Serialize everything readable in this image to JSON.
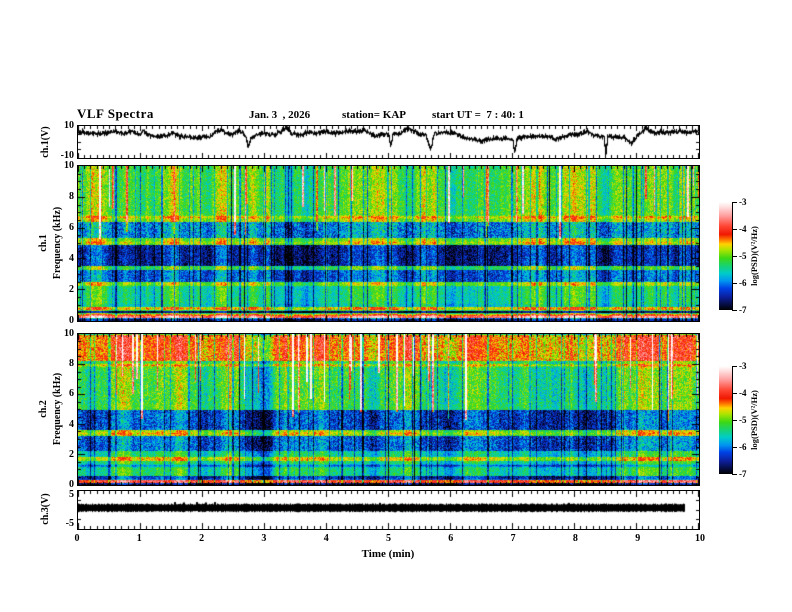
{
  "header": {
    "title": "VLF Spectra",
    "date": "Jan. 3  , 2026",
    "station": "station= KAP",
    "start_ut": "start UT =  7 : 40: 1"
  },
  "axes": {
    "time_label": "Time (min)",
    "time_ticks": [
      "0",
      "1",
      "2",
      "3",
      "4",
      "5",
      "6",
      "7",
      "8",
      "9",
      "10"
    ],
    "wave": {
      "label": "ch.1(V)",
      "ytop": "10",
      "ybottom": "-10"
    },
    "spec1": {
      "row_label": "ch.1",
      "ylabel": "Frequency (kHz)",
      "yticks": [
        "0",
        "2",
        "4",
        "6",
        "8",
        "10"
      ]
    },
    "spec2": {
      "row_label": "ch.2",
      "ylabel": "Frequency (kHz)",
      "yticks": [
        "0",
        "2",
        "4",
        "6",
        "8",
        "10"
      ]
    },
    "ch3": {
      "label": "ch.3(V)",
      "ytop": "5",
      "ybottom": "-5"
    },
    "colorbar": {
      "label": "log(PSD)(V²/Hz)",
      "ticks": [
        "-3",
        "-4",
        "-5",
        "-6",
        "-7"
      ]
    }
  },
  "palette": {
    "stops": [
      [
        0.0,
        "#ffffff"
      ],
      [
        0.05,
        "#ffdcdc"
      ],
      [
        0.13,
        "#ff9c9c"
      ],
      [
        0.22,
        "#ff4838"
      ],
      [
        0.3,
        "#f01800"
      ],
      [
        0.35,
        "#ff7800"
      ],
      [
        0.39,
        "#ffd200"
      ],
      [
        0.44,
        "#b4e400"
      ],
      [
        0.52,
        "#3cd814"
      ],
      [
        0.6,
        "#14d27c"
      ],
      [
        0.66,
        "#00ccc8"
      ],
      [
        0.73,
        "#0096f0"
      ],
      [
        0.8,
        "#0041e6"
      ],
      [
        0.88,
        "#0d1f9b"
      ],
      [
        1.0,
        "#000000"
      ]
    ]
  },
  "chart_data": [
    {
      "id": "ch1_waveform",
      "type": "line",
      "title": "ch.1(V)",
      "xlim_min": [
        0,
        10
      ],
      "ylim_volts": [
        -10,
        10
      ],
      "noise_amp": 0.8,
      "seed": 424242,
      "points": [
        [
          0,
          6.5
        ],
        [
          0.1,
          6
        ],
        [
          0.2,
          5.5
        ],
        [
          0.35,
          5
        ],
        [
          0.5,
          5.5
        ],
        [
          0.6,
          7
        ],
        [
          0.7,
          5
        ],
        [
          0.85,
          6.5
        ],
        [
          1,
          4.5
        ],
        [
          1.05,
          7
        ],
        [
          1.15,
          4
        ],
        [
          1.3,
          3.5
        ],
        [
          1.45,
          4
        ],
        [
          1.5,
          6
        ],
        [
          1.6,
          3.5
        ],
        [
          1.75,
          3
        ],
        [
          1.9,
          2.5
        ],
        [
          2,
          3
        ],
        [
          2.1,
          2.5
        ],
        [
          2.2,
          6
        ],
        [
          2.3,
          7.5
        ],
        [
          2.4,
          5
        ],
        [
          2.5,
          4.5
        ],
        [
          2.6,
          7.5
        ],
        [
          2.7,
          3
        ],
        [
          2.73,
          -4
        ],
        [
          2.78,
          2
        ],
        [
          2.9,
          5
        ],
        [
          3,
          5.5
        ],
        [
          3.1,
          4.5
        ],
        [
          3.2,
          5
        ],
        [
          3.35,
          8.5
        ],
        [
          3.45,
          5
        ],
        [
          3.6,
          4.5
        ],
        [
          3.7,
          6
        ],
        [
          3.8,
          5
        ],
        [
          3.95,
          6.5
        ],
        [
          4.1,
          5
        ],
        [
          4.25,
          6
        ],
        [
          4.4,
          7
        ],
        [
          4.5,
          6
        ],
        [
          4.6,
          7.5
        ],
        [
          4.7,
          5
        ],
        [
          4.8,
          3.5
        ],
        [
          4.9,
          5
        ],
        [
          5,
          4.5
        ],
        [
          5.03,
          -3
        ],
        [
          5.07,
          5
        ],
        [
          5.2,
          5.5
        ],
        [
          5.3,
          8.5
        ],
        [
          5.4,
          7
        ],
        [
          5.5,
          5
        ],
        [
          5.6,
          4.5
        ],
        [
          5.68,
          -5.5
        ],
        [
          5.73,
          5
        ],
        [
          5.8,
          5.5
        ],
        [
          5.9,
          6
        ],
        [
          6,
          5.5
        ],
        [
          6.1,
          5
        ],
        [
          6.2,
          3
        ],
        [
          6.3,
          1.5
        ],
        [
          6.4,
          1
        ],
        [
          6.5,
          0.5
        ],
        [
          6.6,
          1.5
        ],
        [
          6.7,
          2
        ],
        [
          6.8,
          1.5
        ],
        [
          6.9,
          2
        ],
        [
          7,
          1
        ],
        [
          7.03,
          -7
        ],
        [
          7.07,
          2
        ],
        [
          7.2,
          3
        ],
        [
          7.3,
          3.5
        ],
        [
          7.4,
          3
        ],
        [
          7.5,
          3.5
        ],
        [
          7.6,
          3
        ],
        [
          7.7,
          1
        ],
        [
          7.8,
          3
        ],
        [
          7.9,
          4
        ],
        [
          8,
          4.5
        ],
        [
          8.1,
          5
        ],
        [
          8.2,
          7
        ],
        [
          8.3,
          4
        ],
        [
          8.4,
          3.5
        ],
        [
          8.47,
          3
        ],
        [
          8.5,
          -8.5
        ],
        [
          8.53,
          3
        ],
        [
          8.6,
          3
        ],
        [
          8.7,
          2.5
        ],
        [
          8.8,
          3
        ],
        [
          8.9,
          -1.5
        ],
        [
          9,
          3
        ],
        [
          9.1,
          6.5
        ],
        [
          9.15,
          9
        ],
        [
          9.2,
          6
        ],
        [
          9.3,
          5.5
        ],
        [
          9.4,
          6.5
        ],
        [
          9.5,
          5.5
        ],
        [
          9.6,
          6
        ],
        [
          9.7,
          6.5
        ],
        [
          9.8,
          5.5
        ],
        [
          9.9,
          6.5
        ],
        [
          10,
          6
        ]
      ]
    },
    {
      "id": "ch1_spectrogram",
      "type": "heatmap",
      "title": "ch.1 Frequency (kHz)",
      "xlim_min": [
        0,
        10
      ],
      "flim_khz": [
        0,
        10
      ],
      "zlim_logpsd": [
        -7,
        -3
      ],
      "seed": 12345,
      "bands": [
        {
          "f": [
            0,
            0.15
          ],
          "z": -6.7,
          "var": 0.3
        },
        {
          "f": [
            0.15,
            0.32
          ],
          "z": -3.7,
          "var": 0.25
        },
        {
          "f": [
            0.32,
            0.48
          ],
          "z": -4.4,
          "var": 0.3
        },
        {
          "f": [
            0.48,
            0.62
          ],
          "z": -6.4,
          "var": 0.2
        },
        {
          "f": [
            0.62,
            0.85
          ],
          "z": -4.7,
          "var": 0.3
        },
        {
          "f": [
            0.85,
            1.05
          ],
          "z": -5.6,
          "var": 0.3
        },
        {
          "f": [
            1.05,
            2.25
          ],
          "z": -5.45,
          "var": 0.3
        },
        {
          "f": [
            2.25,
            2.5
          ],
          "z": -5.0,
          "var": 0.25
        },
        {
          "f": [
            2.5,
            3.3
          ],
          "z": -6.15,
          "var": 0.4
        },
        {
          "f": [
            3.3,
            3.55
          ],
          "z": -5.2,
          "var": 0.3
        },
        {
          "f": [
            3.55,
            4.9
          ],
          "z": -6.5,
          "var": 0.4
        },
        {
          "f": [
            4.9,
            5.35
          ],
          "z": -5.0,
          "var": 0.3
        },
        {
          "f": [
            5.35,
            6.4
          ],
          "z": -5.95,
          "var": 0.5
        },
        {
          "f": [
            6.4,
            6.8
          ],
          "z": -4.9,
          "var": 0.3
        },
        {
          "f": [
            6.8,
            10
          ],
          "z": -5.15,
          "var": 0.35
        }
      ],
      "h_lines": [
        {
          "f": 6.7,
          "z": -4.6
        },
        {
          "f": 5.05,
          "z": -4.7
        },
        {
          "f": 2.38,
          "z": -4.9
        },
        {
          "f": 0.75,
          "z": -4.5
        },
        {
          "f": 0.24,
          "z": -3.6
        },
        {
          "f": 0.55,
          "z": -6.8
        }
      ],
      "hot_streaks": {
        "count": 26,
        "f_bottom_min": 5.0,
        "f_bottom_spread": 4.0,
        "amp": 1.6
      },
      "dark_streaks": {
        "count": 70,
        "amp": 0.9
      },
      "periodic_dark_min": 0.4
    },
    {
      "id": "ch2_spectrogram",
      "type": "heatmap",
      "title": "ch.2 Frequency (kHz)",
      "xlim_min": [
        0,
        10
      ],
      "flim_khz": [
        0,
        10
      ],
      "zlim_logpsd": [
        -7,
        -3
      ],
      "seed": 77777,
      "bands": [
        {
          "f": [
            0,
            0.12
          ],
          "z": -6.8,
          "var": 0.3
        },
        {
          "f": [
            0.12,
            0.3
          ],
          "z": -4.0,
          "var": 0.35
        },
        {
          "f": [
            0.3,
            0.55
          ],
          "z": -6.3,
          "var": 0.35
        },
        {
          "f": [
            0.55,
            1.6
          ],
          "z": -5.35,
          "var": 0.3
        },
        {
          "f": [
            1.6,
            1.85
          ],
          "z": -4.7,
          "var": 0.3
        },
        {
          "f": [
            1.85,
            2.25
          ],
          "z": -5.4,
          "var": 0.3
        },
        {
          "f": [
            2.25,
            3.2
          ],
          "z": -6.05,
          "var": 0.45
        },
        {
          "f": [
            3.2,
            3.65
          ],
          "z": -4.85,
          "var": 0.3
        },
        {
          "f": [
            3.65,
            5.0
          ],
          "z": -6.15,
          "var": 0.45
        },
        {
          "f": [
            5.0,
            5.35
          ],
          "z": -5.1,
          "var": 0.3
        },
        {
          "f": [
            5.35,
            8.25
          ],
          "z": -5.15,
          "var": 0.4
        },
        {
          "f": [
            8.25,
            10
          ],
          "z": -4.25,
          "var": 0.45
        }
      ],
      "h_lines": [
        {
          "f": 7.95,
          "z": -4.5
        },
        {
          "f": 3.4,
          "z": -4.6
        },
        {
          "f": 1.72,
          "z": -4.6
        },
        {
          "f": 1.25,
          "z": -6.0
        },
        {
          "f": 0.2,
          "z": -3.9
        }
      ],
      "hot_streaks": {
        "count": 34,
        "f_bottom_min": 4.2,
        "f_bottom_spread": 3.5,
        "amp": 1.9
      },
      "dark_streaks": {
        "count": 60,
        "amp": 0.8
      },
      "periodic_dark_min": 0.4
    },
    {
      "id": "ch3_output",
      "type": "line",
      "title": "ch.3(V)",
      "xlim_min": [
        0,
        10
      ],
      "ylim_volts": [
        -5,
        5
      ],
      "seed": 999,
      "bar": {
        "x_start": 0,
        "x_end": 9.78,
        "value": 0.45,
        "half_width": 1.0
      },
      "spikes": [
        {
          "x": 1.55,
          "v": 2.0
        },
        {
          "x": 1.7,
          "v": 1.9
        },
        {
          "x": 1.9,
          "v": 2.0
        },
        {
          "x": 2.05,
          "v": 1.9
        },
        {
          "x": 2.2,
          "v": 2.0
        },
        {
          "x": 4.85,
          "v": 1.8
        },
        {
          "x": 7.9,
          "v": 1.8
        }
      ]
    }
  ]
}
